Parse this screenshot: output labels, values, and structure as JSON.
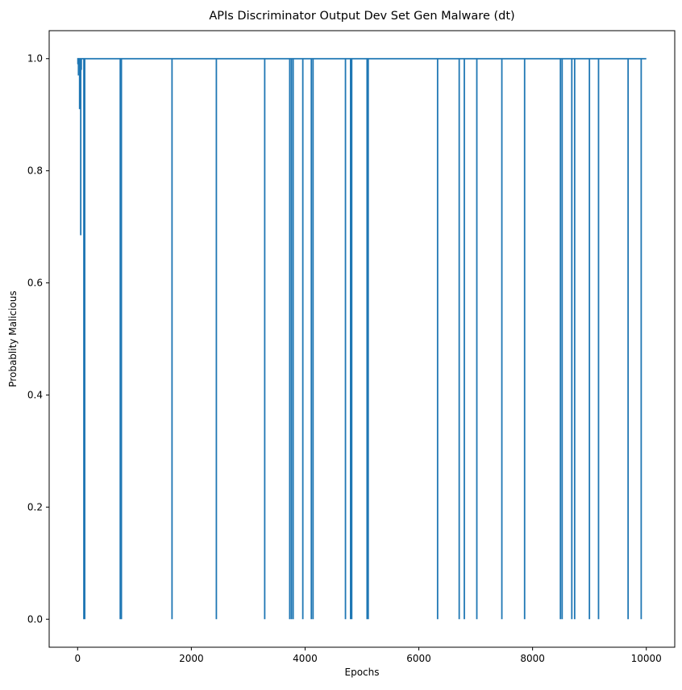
{
  "chart_data": {
    "type": "line",
    "title": "APIs Discriminator Output Dev Set Gen Malware (dt)",
    "xlabel": "Epochs",
    "ylabel": "Probablity Malicious",
    "xlim": [
      -500,
      10500
    ],
    "ylim": [
      -0.05,
      1.05
    ],
    "xticks": [
      0,
      2000,
      4000,
      6000,
      8000,
      10000
    ],
    "xtick_labels": [
      "0",
      "2000",
      "4000",
      "6000",
      "8000",
      "10000"
    ],
    "yticks": [
      0.0,
      0.2,
      0.4,
      0.6,
      0.8,
      1.0
    ],
    "ytick_labels": [
      "0.0",
      "0.2",
      "0.4",
      "0.6",
      "0.8",
      "1.0"
    ],
    "grid": false,
    "line_color": "#1f77b4",
    "series": [
      {
        "baseline": 1.0,
        "x_end": 10000,
        "early_dips": [
          {
            "x": 5,
            "y": 0.99
          },
          {
            "x": 15,
            "y": 0.97
          },
          {
            "x": 25,
            "y": 0.995
          },
          {
            "x": 35,
            "y": 0.91
          },
          {
            "x": 45,
            "y": 0.99
          },
          {
            "x": 55,
            "y": 0.685
          },
          {
            "x": 65,
            "y": 0.98
          }
        ],
        "drops_to_zero": [
          110,
          125,
          750,
          770,
          1660,
          2440,
          3290,
          3730,
          3760,
          3790,
          3960,
          4110,
          4140,
          4710,
          4800,
          4820,
          5090,
          5110,
          6330,
          6710,
          6800,
          7020,
          7460,
          7860,
          8490,
          8520,
          8690,
          8740,
          9000,
          9160,
          9680,
          9910
        ]
      }
    ]
  }
}
